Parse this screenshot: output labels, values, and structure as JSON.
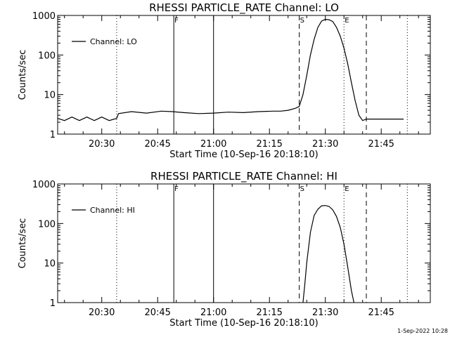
{
  "footer": {
    "timestamp": "1-Sep-2022 10:28"
  },
  "chart_data": [
    {
      "type": "line",
      "title": "RHESSI PARTICLE_RATE Channel: LO",
      "xlabel": "Start Time (10-Sep-16 20:18:10)",
      "ylabel": "Counts/sec",
      "y_scale": "log",
      "xlim": [
        "20:18:10",
        "21:58:10"
      ],
      "ylim": [
        1,
        1000
      ],
      "x_ticks": [
        "20:30",
        "20:45",
        "21:00",
        "21:15",
        "21:30",
        "21:45"
      ],
      "y_ticks": [
        "1",
        "10",
        "100",
        "1000"
      ],
      "legend": {
        "placement": "top-left",
        "entries": [
          "Channel: LO"
        ]
      },
      "markers": [
        {
          "time": "20:34:00",
          "style": "dotted",
          "label": ""
        },
        {
          "time": "20:49:20",
          "style": "solid",
          "label": "F"
        },
        {
          "time": "21:00:00",
          "style": "solid",
          "label": ""
        },
        {
          "time": "21:23:00",
          "style": "dashed",
          "label": "S"
        },
        {
          "time": "21:35:00",
          "style": "dotted",
          "label": "E"
        },
        {
          "time": "21:41:00",
          "style": "dashed",
          "label": ""
        },
        {
          "time": "21:52:00",
          "style": "dotted",
          "label": ""
        }
      ],
      "series": [
        {
          "name": "Channel: LO",
          "x": [
            "20:18:10",
            "20:20:00",
            "20:22:00",
            "20:24:00",
            "20:26:00",
            "20:28:00",
            "20:30:00",
            "20:32:00",
            "20:34:00",
            "20:34:30",
            "20:38:00",
            "20:42:00",
            "20:46:00",
            "20:49:00",
            "20:52:00",
            "20:56:00",
            "21:00:00",
            "21:04:00",
            "21:08:00",
            "21:12:00",
            "21:16:00",
            "21:18:00",
            "21:20:00",
            "21:22:00",
            "21:23:00",
            "21:24:00",
            "21:25:00",
            "21:26:00",
            "21:27:00",
            "21:28:00",
            "21:29:00",
            "21:30:00",
            "21:31:00",
            "21:32:00",
            "21:33:00",
            "21:34:00",
            "21:35:00",
            "21:36:00",
            "21:37:00",
            "21:38:00",
            "21:39:00",
            "21:40:00",
            "21:41:00",
            "21:44:00",
            "21:48:00",
            "21:51:00"
          ],
          "y": [
            2.5,
            2.2,
            2.7,
            2.2,
            2.7,
            2.2,
            2.7,
            2.2,
            2.5,
            3.3,
            3.7,
            3.4,
            3.8,
            3.7,
            3.5,
            3.3,
            3.4,
            3.6,
            3.5,
            3.7,
            3.8,
            3.8,
            4.0,
            4.5,
            5,
            10,
            30,
            100,
            250,
            500,
            720,
            800,
            780,
            700,
            500,
            300,
            150,
            60,
            20,
            7,
            3,
            2.2,
            2.4,
            2.4,
            2.4,
            2.4
          ]
        }
      ]
    },
    {
      "type": "line",
      "title": "RHESSI PARTICLE_RATE Channel: HI",
      "xlabel": "Start Time (10-Sep-16 20:18:10)",
      "ylabel": "Counts/sec",
      "y_scale": "log",
      "xlim": [
        "20:18:10",
        "21:58:10"
      ],
      "ylim": [
        1,
        1000
      ],
      "x_ticks": [
        "20:30",
        "20:45",
        "21:00",
        "21:15",
        "21:30",
        "21:45"
      ],
      "y_ticks": [
        "1",
        "10",
        "100",
        "1000"
      ],
      "legend": {
        "placement": "top-left",
        "entries": [
          "Channel: HI"
        ]
      },
      "markers": [
        {
          "time": "20:34:00",
          "style": "dotted",
          "label": ""
        },
        {
          "time": "20:49:20",
          "style": "solid",
          "label": "F"
        },
        {
          "time": "21:00:00",
          "style": "solid",
          "label": ""
        },
        {
          "time": "21:23:00",
          "style": "dashed",
          "label": "S"
        },
        {
          "time": "21:35:00",
          "style": "dotted",
          "label": "E"
        },
        {
          "time": "21:41:00",
          "style": "dashed",
          "label": ""
        },
        {
          "time": "21:52:00",
          "style": "dotted",
          "label": ""
        }
      ],
      "series": [
        {
          "name": "Channel: HI",
          "x": [
            "21:24:00",
            "21:24:30",
            "21:25:00",
            "21:26:00",
            "21:27:00",
            "21:28:00",
            "21:29:00",
            "21:30:00",
            "21:31:00",
            "21:32:00",
            "21:33:00",
            "21:34:00",
            "21:35:00",
            "21:36:00",
            "21:37:00",
            "21:37:40"
          ],
          "y": [
            1,
            3,
            10,
            60,
            160,
            230,
            280,
            285,
            270,
            220,
            150,
            80,
            30,
            8,
            2,
            1
          ]
        }
      ]
    }
  ]
}
